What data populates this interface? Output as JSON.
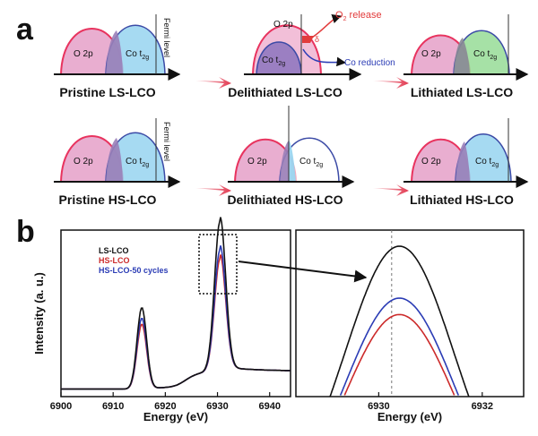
{
  "panel_a": {
    "label": "a",
    "fermi_label": "Fermi level",
    "o2p": "O 2p",
    "co_t2g_base": "Co t",
    "co_t2g_sub": "2g",
    "o2_release_base": "O",
    "o2_release_sub": "2",
    "o2_release_rest": " release",
    "co_reduction": "Co reduction",
    "delta_symbol": "δ",
    "row1": [
      "Pristine LS-LCO",
      "Delithiated LS-LCO",
      "Lithiated LS-LCO"
    ],
    "row2": [
      "Pristine HS-LCO",
      "Delithiated HS-LCO",
      "Lithiated HS-LCO"
    ]
  },
  "panel_b": {
    "label": "b",
    "colors": {
      "ls": "#111111",
      "hs": "#cc2a2a",
      "hs50": "#2b3cb5"
    }
  },
  "chart_data": [
    {
      "type": "line",
      "title": "",
      "xlabel": "Energy (eV)",
      "ylabel": "Intensity (a. u.)",
      "xlim": [
        6900,
        6944
      ],
      "xticks": [
        6900,
        6910,
        6920,
        6930,
        6940
      ],
      "legend": "top-left",
      "series": [
        {
          "name": "LS-LCO",
          "color": "#111111",
          "peak1": {
            "x": 6915.5,
            "y": 0.54
          },
          "peak2": {
            "x": 6930.5,
            "y": 1.0
          }
        },
        {
          "name": "HS-LCO",
          "color": "#cc2a2a",
          "peak1": {
            "x": 6915.5,
            "y": 0.43
          },
          "peak2": {
            "x": 6930.5,
            "y": 0.75
          }
        },
        {
          "name": "HS-LCO-50 cycles",
          "color": "#2b3cb5",
          "peak1": {
            "x": 6915.5,
            "y": 0.47
          },
          "peak2": {
            "x": 6930.5,
            "y": 0.81
          }
        }
      ]
    },
    {
      "type": "line",
      "title": "",
      "xlabel": "Energy (eV)",
      "ylabel": "",
      "xlim": [
        6928.4,
        6932.8
      ],
      "xticks": [
        6930,
        6932
      ],
      "marker_x": 6930.25,
      "series": [
        {
          "name": "LS-LCO",
          "color": "#111111",
          "peak_x": 6930.4,
          "peak_y": 1.0
        },
        {
          "name": "HS-LCO-50 cycles",
          "color": "#2b3cb5",
          "peak_x": 6930.4,
          "peak_y": 0.81
        },
        {
          "name": "HS-LCO",
          "color": "#cc2a2a",
          "peak_x": 6930.4,
          "peak_y": 0.75
        }
      ]
    }
  ]
}
